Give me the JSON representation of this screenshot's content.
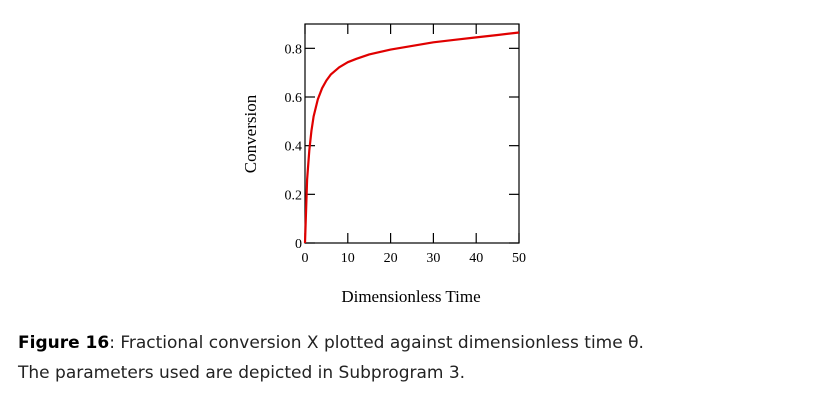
{
  "chart_data": {
    "type": "line",
    "xlabel": "Dimensionless Time",
    "ylabel": "Conversion",
    "xlim": [
      0,
      50
    ],
    "ylim": [
      0,
      0.9
    ],
    "x_ticks": [
      "0",
      "10",
      "20",
      "30",
      "40",
      "50"
    ],
    "y_ticks": [
      "0",
      "0.2",
      "0.4",
      "0.6",
      "0.8"
    ],
    "grid": false,
    "line_color": "#e00000",
    "series": [
      {
        "x": [
          0,
          0.5,
          1,
          1.5,
          2,
          3,
          4,
          5,
          6,
          8,
          10,
          12,
          15,
          20,
          25,
          30,
          35,
          40,
          45,
          50
        ],
        "y": [
          0,
          0.26,
          0.38,
          0.46,
          0.52,
          0.59,
          0.636,
          0.668,
          0.692,
          0.722,
          0.743,
          0.757,
          0.775,
          0.795,
          0.81,
          0.825,
          0.835,
          0.845,
          0.855,
          0.865
        ]
      }
    ]
  },
  "caption": {
    "label": "Figure 16",
    "line1": ": Fractional conversion X plotted against dimensionless time θ.",
    "line2": "The parameters used are depicted in Subprogram 3."
  }
}
